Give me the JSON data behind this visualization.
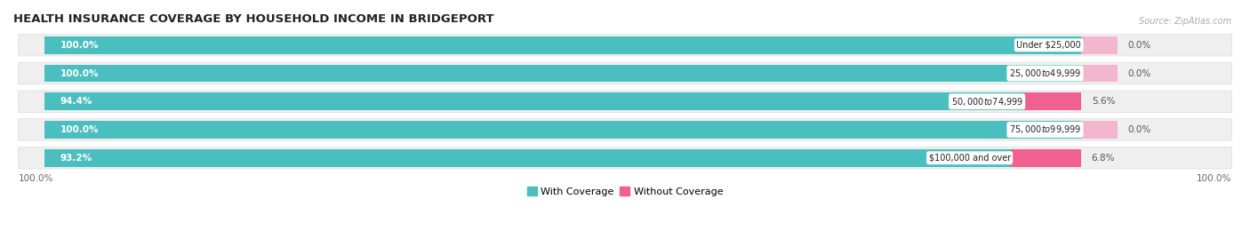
{
  "title": "HEALTH INSURANCE COVERAGE BY HOUSEHOLD INCOME IN BRIDGEPORT",
  "source": "Source: ZipAtlas.com",
  "categories": [
    "Under $25,000",
    "$25,000 to $49,999",
    "$50,000 to $74,999",
    "$75,000 to $99,999",
    "$100,000 and over"
  ],
  "with_coverage": [
    100.0,
    100.0,
    94.4,
    100.0,
    93.2
  ],
  "without_coverage": [
    0.0,
    0.0,
    5.6,
    0.0,
    6.8
  ],
  "color_with": "#4bbfbf",
  "color_without": "#f06090",
  "color_without_pale": "#f5a0bf",
  "title_fontsize": 9.5,
  "label_fontsize": 7.5,
  "tick_fontsize": 7.5,
  "legend_fontsize": 8,
  "fig_bg": "#ffffff",
  "bar_height": 0.62,
  "row_bg": "#efefef",
  "cat_label_fontsize": 7.0,
  "woc_label_color": "#555555",
  "with_label_color": "#ffffff"
}
